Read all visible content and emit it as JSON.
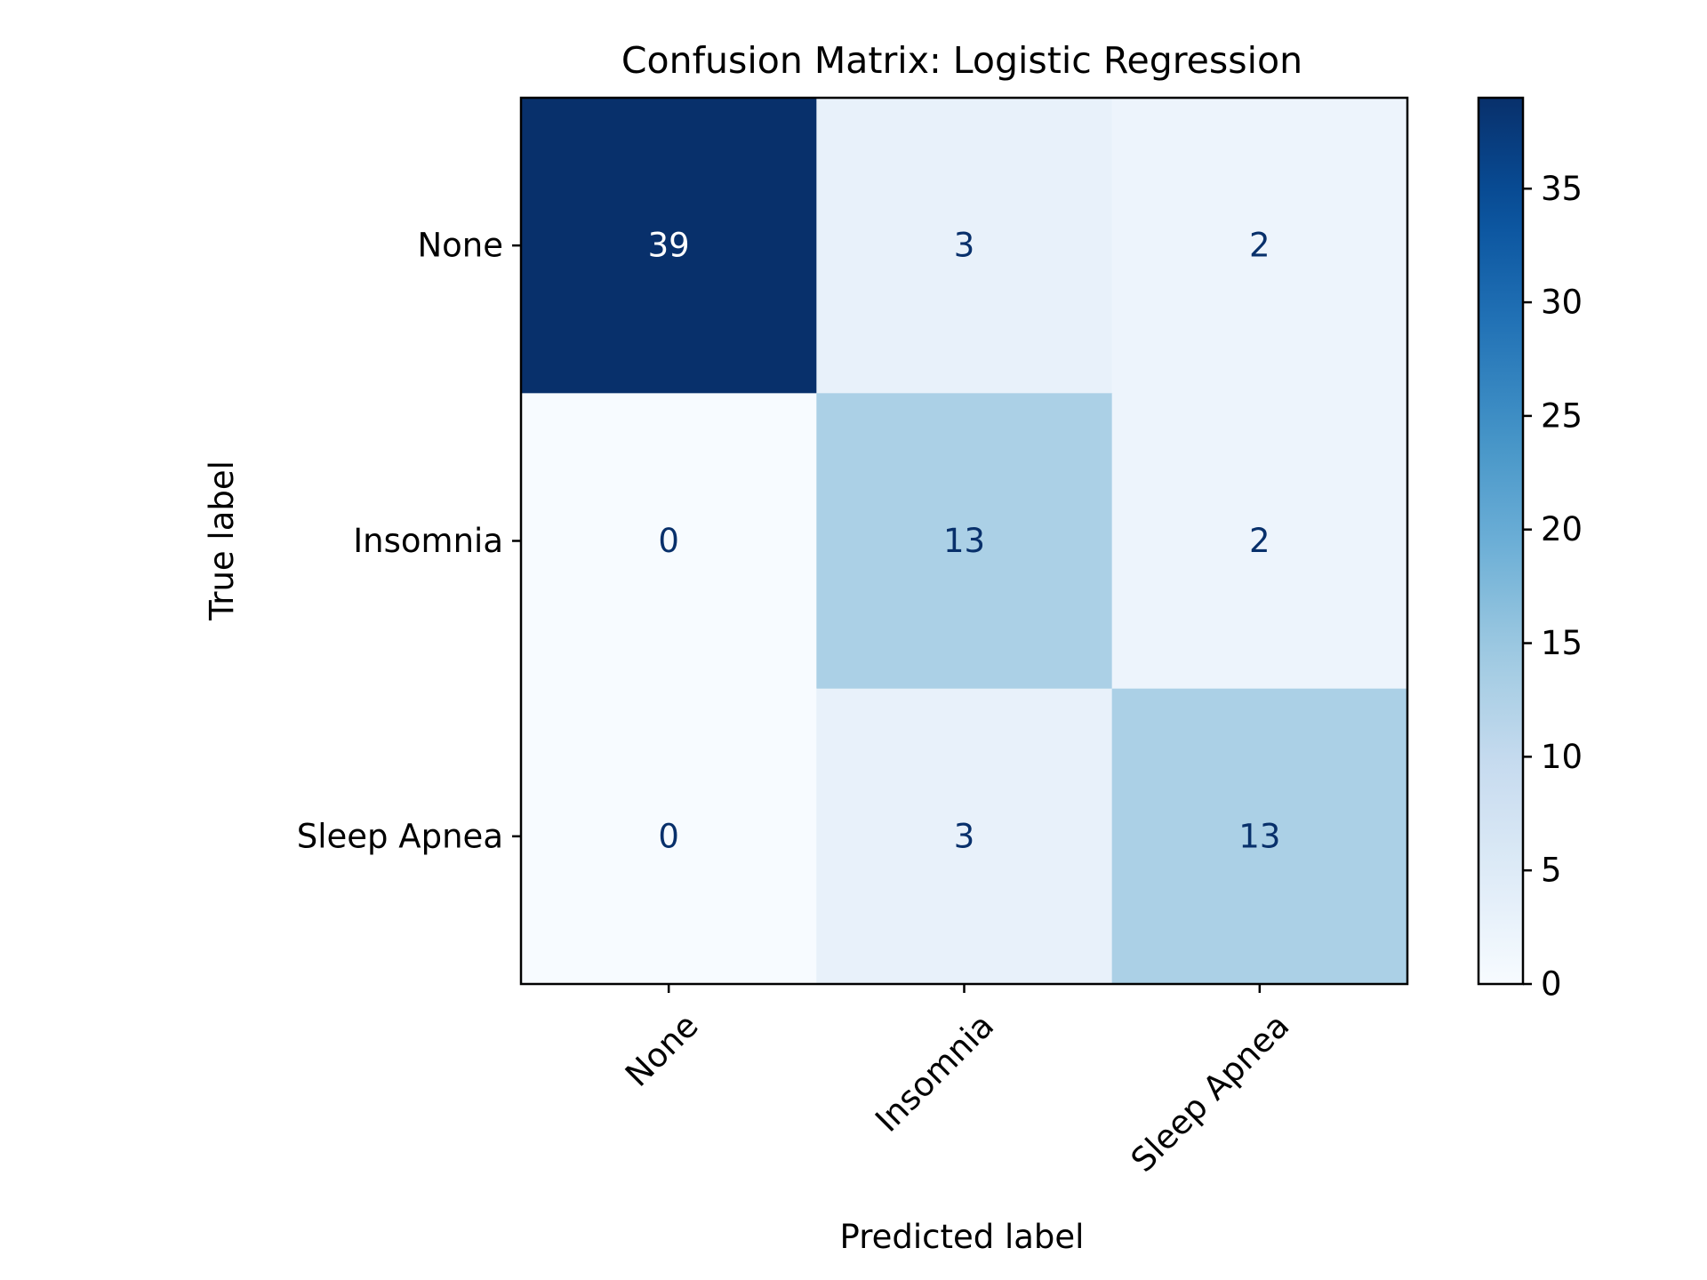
{
  "chart_data": {
    "type": "heatmap",
    "title": "Confusion Matrix: Logistic Regression",
    "xlabel": "Predicted label",
    "ylabel": "True label",
    "x_categories": [
      "None",
      "Insomnia",
      "Sleep Apnea"
    ],
    "y_categories": [
      "None",
      "Insomnia",
      "Sleep Apnea"
    ],
    "values": [
      [
        39,
        3,
        2
      ],
      [
        0,
        13,
        2
      ],
      [
        0,
        3,
        13
      ]
    ],
    "colormap": "Blues",
    "color_range": [
      0,
      39
    ],
    "colorbar": {
      "ticks": [
        0,
        5,
        10,
        15,
        20,
        25,
        30,
        35
      ]
    },
    "text_colors": {
      "on_dark": "#ffffff",
      "on_light": "#08306b"
    }
  }
}
